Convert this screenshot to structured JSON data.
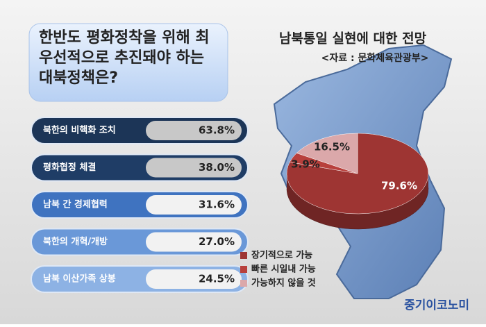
{
  "chart_data": [
    {
      "type": "bar",
      "title": "한반도 평화정착을 위해 최우선적으로 추진돼야 하는 대북정책은?",
      "categories": [
        "북한의 비핵화 조치",
        "평화협정 체결",
        "남북 간 경제협력",
        "북한의 개혁/개방",
        "남북 이산가족 상봉"
      ],
      "values": [
        63.8,
        38.0,
        31.6,
        27.0,
        24.5
      ],
      "value_labels": [
        "63.8%",
        "38.0%",
        "31.6%",
        "27.0%",
        "24.5%"
      ],
      "colors": [
        "#1c3557",
        "#1f3d66",
        "#3f73c0",
        "#6a98d8",
        "#8db2e4"
      ]
    },
    {
      "type": "pie",
      "title": "남북통일 실현에 대한 전망",
      "subtitle": "<자료 : 문화체육관광부>",
      "categories": [
        "장기적으로 가능",
        "빠른 시일내 가능",
        "가능하지 않을 것"
      ],
      "values": [
        79.6,
        3.9,
        16.5
      ],
      "value_labels": [
        "79.6%",
        "3.9%",
        "16.5%"
      ],
      "colors": [
        "#9e3533",
        "#b8403c",
        "#dba8aa"
      ]
    }
  ],
  "logo": "중기이코노미"
}
